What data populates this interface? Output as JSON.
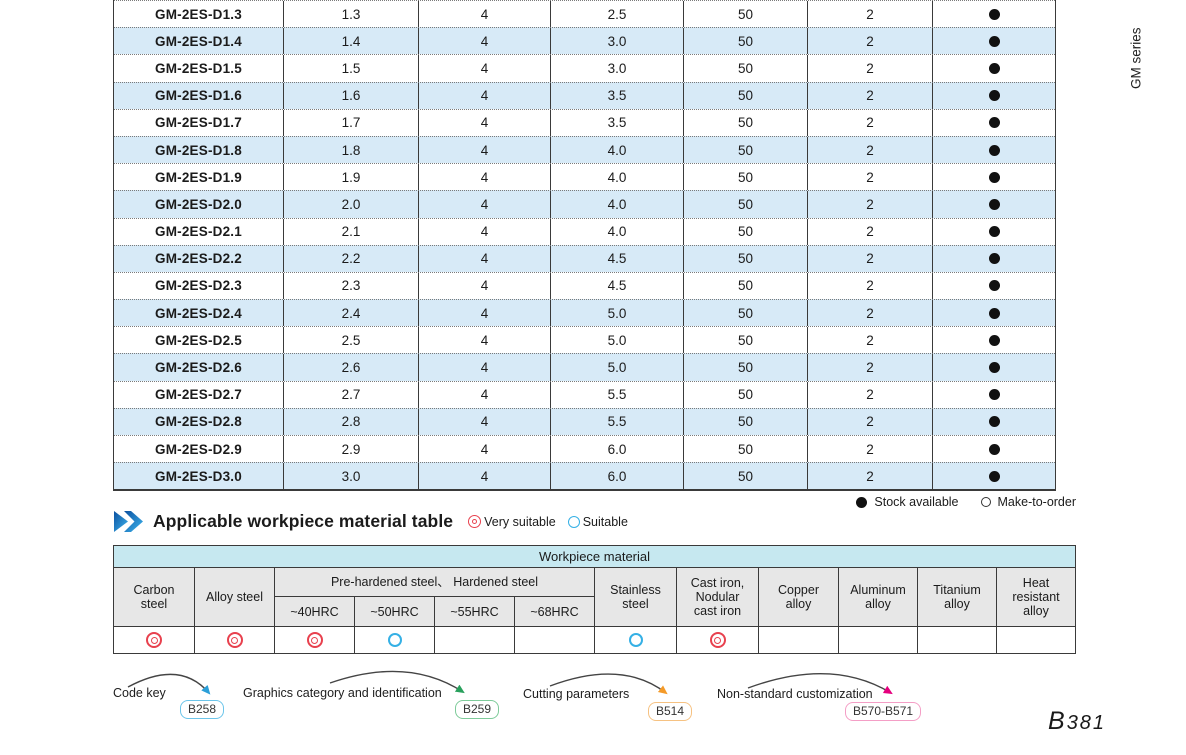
{
  "page": {
    "side_label": "GM series",
    "page_number_prefix": "B",
    "page_number": "381"
  },
  "spec_table": {
    "rows": [
      {
        "model": "GM-2ES-D1.3",
        "values": [
          "1.3",
          "4",
          "2.5",
          "50",
          "2"
        ],
        "stock": "available"
      },
      {
        "model": "GM-2ES-D1.4",
        "values": [
          "1.4",
          "4",
          "3.0",
          "50",
          "2"
        ],
        "stock": "available"
      },
      {
        "model": "GM-2ES-D1.5",
        "values": [
          "1.5",
          "4",
          "3.0",
          "50",
          "2"
        ],
        "stock": "available"
      },
      {
        "model": "GM-2ES-D1.6",
        "values": [
          "1.6",
          "4",
          "3.5",
          "50",
          "2"
        ],
        "stock": "available"
      },
      {
        "model": "GM-2ES-D1.7",
        "values": [
          "1.7",
          "4",
          "3.5",
          "50",
          "2"
        ],
        "stock": "available"
      },
      {
        "model": "GM-2ES-D1.8",
        "values": [
          "1.8",
          "4",
          "4.0",
          "50",
          "2"
        ],
        "stock": "available"
      },
      {
        "model": "GM-2ES-D1.9",
        "values": [
          "1.9",
          "4",
          "4.0",
          "50",
          "2"
        ],
        "stock": "available"
      },
      {
        "model": "GM-2ES-D2.0",
        "values": [
          "2.0",
          "4",
          "4.0",
          "50",
          "2"
        ],
        "stock": "available"
      },
      {
        "model": "GM-2ES-D2.1",
        "values": [
          "2.1",
          "4",
          "4.0",
          "50",
          "2"
        ],
        "stock": "available"
      },
      {
        "model": "GM-2ES-D2.2",
        "values": [
          "2.2",
          "4",
          "4.5",
          "50",
          "2"
        ],
        "stock": "available"
      },
      {
        "model": "GM-2ES-D2.3",
        "values": [
          "2.3",
          "4",
          "4.5",
          "50",
          "2"
        ],
        "stock": "available"
      },
      {
        "model": "GM-2ES-D2.4",
        "values": [
          "2.4",
          "4",
          "5.0",
          "50",
          "2"
        ],
        "stock": "available"
      },
      {
        "model": "GM-2ES-D2.5",
        "values": [
          "2.5",
          "4",
          "5.0",
          "50",
          "2"
        ],
        "stock": "available"
      },
      {
        "model": "GM-2ES-D2.6",
        "values": [
          "2.6",
          "4",
          "5.0",
          "50",
          "2"
        ],
        "stock": "available"
      },
      {
        "model": "GM-2ES-D2.7",
        "values": [
          "2.7",
          "4",
          "5.5",
          "50",
          "2"
        ],
        "stock": "available"
      },
      {
        "model": "GM-2ES-D2.8",
        "values": [
          "2.8",
          "4",
          "5.5",
          "50",
          "2"
        ],
        "stock": "available"
      },
      {
        "model": "GM-2ES-D2.9",
        "values": [
          "2.9",
          "4",
          "6.0",
          "50",
          "2"
        ],
        "stock": "available"
      },
      {
        "model": "GM-2ES-D3.0",
        "values": [
          "3.0",
          "4",
          "6.0",
          "50",
          "2"
        ],
        "stock": "available"
      }
    ],
    "legend": {
      "stock_available": "Stock available",
      "make_to_order": "Make-to-order"
    }
  },
  "section": {
    "title": "Applicable workpiece material table",
    "legend": {
      "very_suitable": "Very suitable",
      "suitable": "Suitable"
    }
  },
  "workpiece_table": {
    "band_title": "Workpiece material",
    "columns_left": [
      "Carbon\nsteel",
      "Alloy steel"
    ],
    "group": {
      "label": "Pre-hardened steel、 Hardened steel",
      "sub": [
        "~40HRC",
        "~50HRC",
        "~55HRC",
        "~68HRC"
      ]
    },
    "columns_right": [
      "Stainless\nsteel",
      "Cast iron,\nNodular\ncast iron",
      "Copper\nalloy",
      "Aluminum\nalloy",
      "Titanium\nalloy",
      "Heat\nresistant\nalloy"
    ],
    "suitability": [
      "very",
      "very",
      "very",
      "suit",
      "",
      "",
      "suit",
      "very",
      "",
      "",
      "",
      ""
    ]
  },
  "footer": {
    "annotations": [
      {
        "label": "Code key",
        "code": "B258"
      },
      {
        "label": "Graphics category and identification",
        "code": "B259"
      },
      {
        "label": "Cutting parameters",
        "code": "B514"
      },
      {
        "label": "Non-standard customization",
        "code": "B570-B571"
      }
    ]
  },
  "colors": {
    "row_alt": "#d7eaf7",
    "band": "#c6e8f0",
    "header_grey": "#e7e7e7",
    "very_suitable": "#e8414e",
    "suitable": "#35b0e5",
    "code_b258": "#6cc5ea",
    "code_b259": "#7ecb9a",
    "code_b514": "#f6c282",
    "code_b570": "#f49ec6"
  }
}
